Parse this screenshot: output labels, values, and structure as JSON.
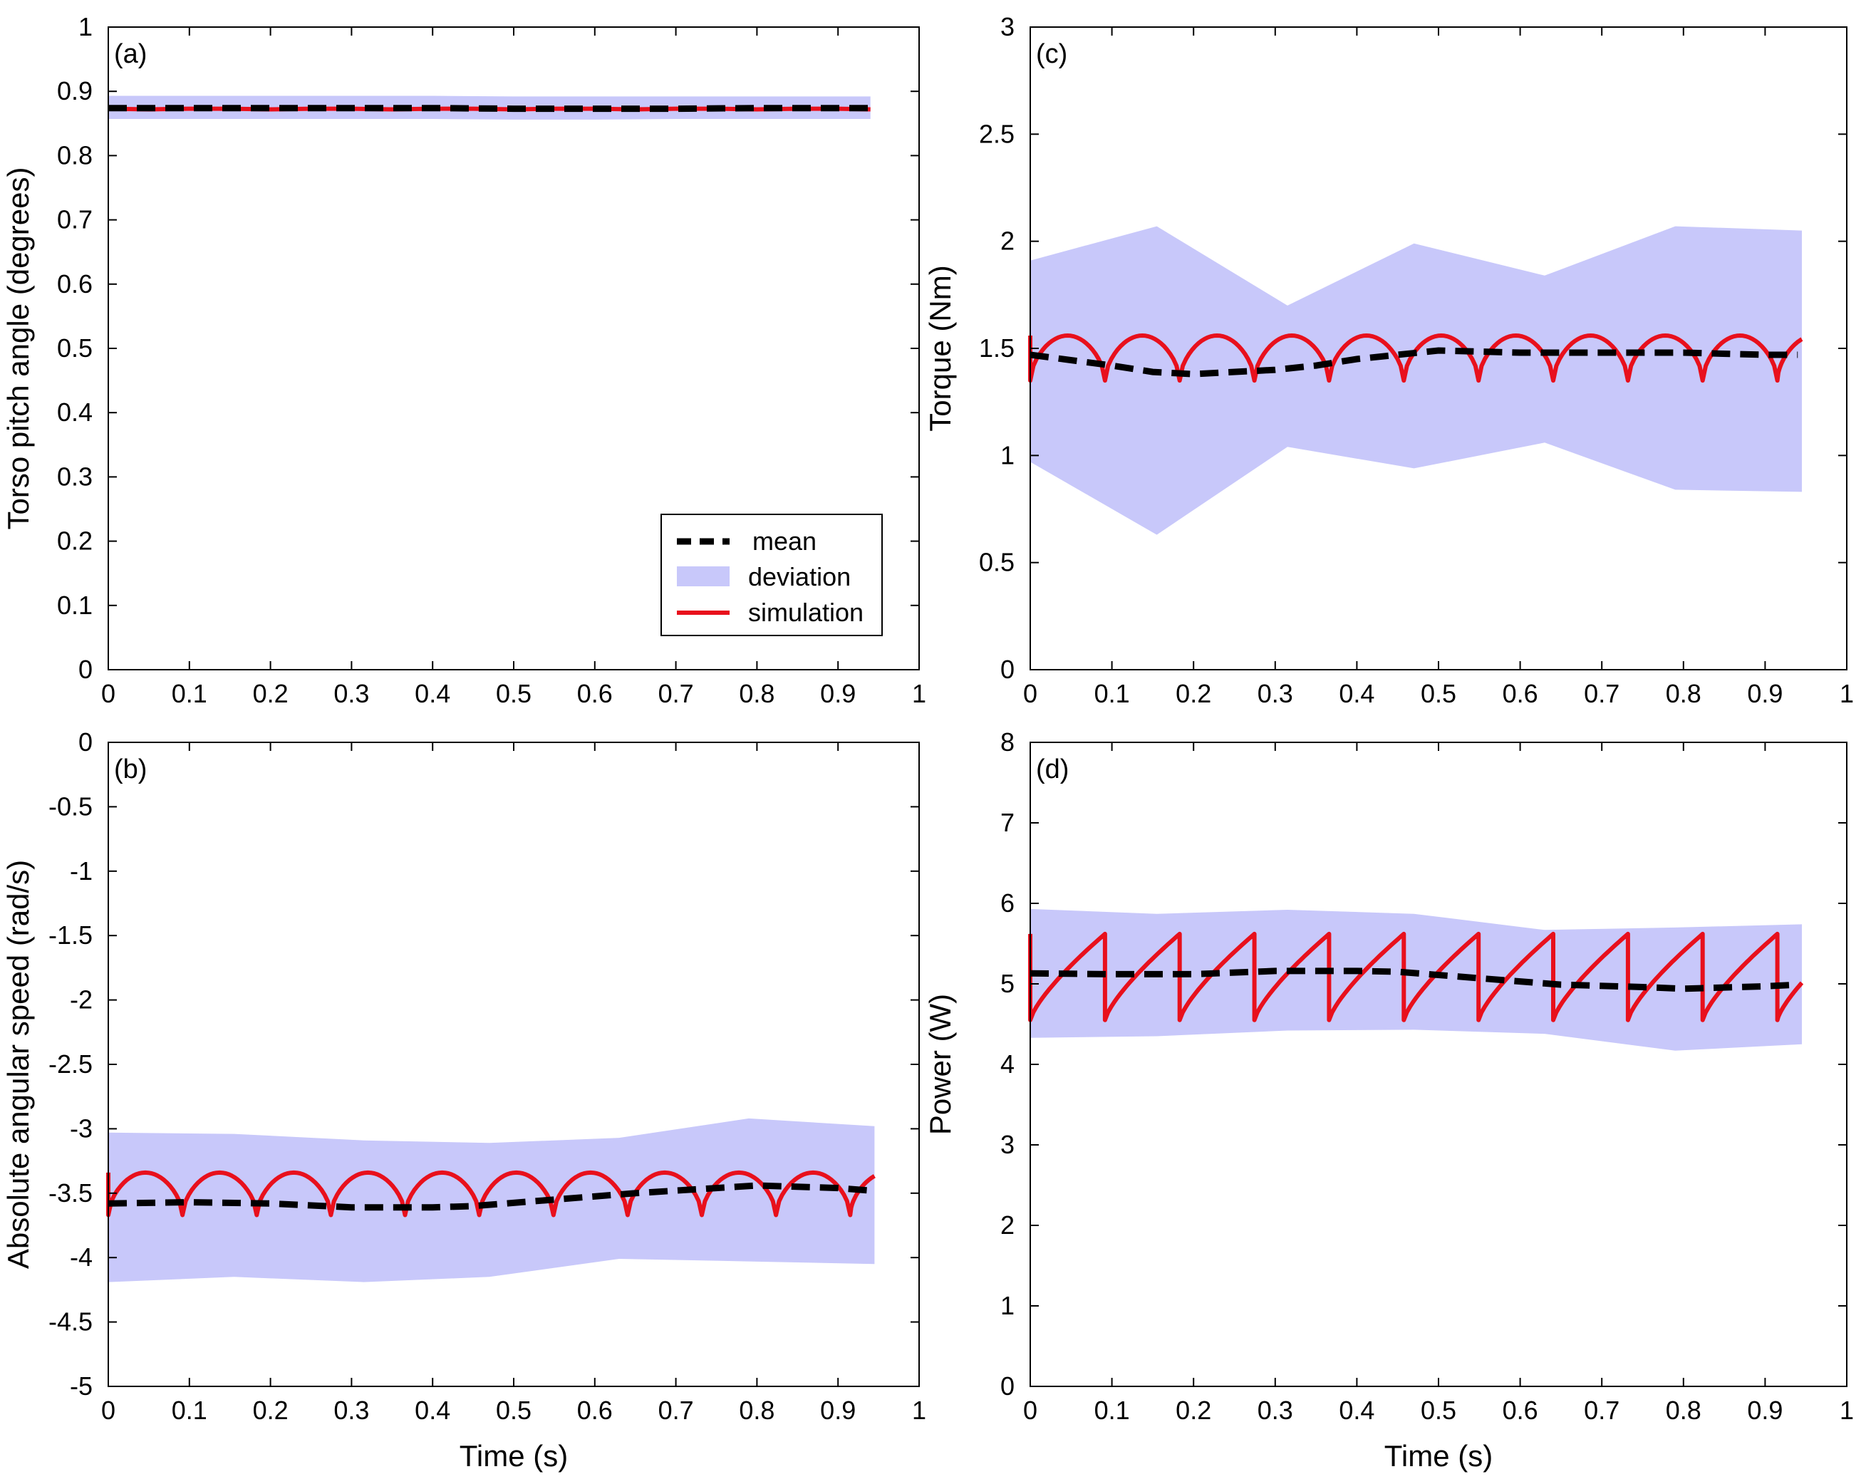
{
  "colors": {
    "band": "#c8c8fa",
    "mean": "#000000",
    "simulation": "#e8101c"
  },
  "legend": {
    "mean": "mean",
    "deviation": "deviation",
    "simulation": "simulation"
  },
  "chart_data": [
    {
      "id": "a",
      "type": "line",
      "tag": "(a)",
      "title": "",
      "xlabel": "",
      "ylabel": "Torso pitch angle (degrees)",
      "xlim": [
        0,
        1
      ],
      "ylim": [
        0,
        1
      ],
      "xticks": [
        0,
        0.1,
        0.2,
        0.3,
        0.4,
        0.5,
        0.6,
        0.7,
        0.8,
        0.9,
        1
      ],
      "xtick_labels": [
        "0",
        "0.1",
        "0.2",
        "0.3",
        "0.4",
        "0.5",
        "0.6",
        "0.7",
        "0.8",
        "0.9",
        "1"
      ],
      "yticks": [
        0,
        0.1,
        0.2,
        0.3,
        0.4,
        0.5,
        0.6,
        0.7,
        0.8,
        0.9,
        1
      ],
      "ytick_labels": [
        "0",
        "0.1",
        "0.2",
        "0.3",
        "0.4",
        "0.5",
        "0.6",
        "0.7",
        "0.8",
        "0.9",
        "1"
      ],
      "legend_position": "bottom-right",
      "deviation": {
        "x": [
          0,
          0.1,
          0.2,
          0.3,
          0.4,
          0.5,
          0.6,
          0.7,
          0.8,
          0.9,
          0.94
        ],
        "upper": [
          0.893,
          0.893,
          0.893,
          0.893,
          0.893,
          0.892,
          0.892,
          0.892,
          0.892,
          0.892,
          0.892
        ],
        "lower": [
          0.857,
          0.857,
          0.857,
          0.857,
          0.857,
          0.856,
          0.856,
          0.857,
          0.857,
          0.857,
          0.857
        ]
      },
      "mean": {
        "x": [
          0,
          0.1,
          0.2,
          0.3,
          0.4,
          0.5,
          0.6,
          0.7,
          0.8,
          0.9,
          0.94
        ],
        "y": [
          0.874,
          0.874,
          0.874,
          0.874,
          0.874,
          0.873,
          0.873,
          0.873,
          0.874,
          0.874,
          0.874
        ]
      },
      "simulation": {
        "x": [
          0,
          0.05,
          0.1,
          0.15,
          0.2,
          0.25,
          0.3,
          0.35,
          0.4,
          0.45,
          0.5,
          0.55,
          0.6,
          0.65,
          0.7,
          0.75,
          0.8,
          0.85,
          0.9,
          0.94
        ],
        "y": [
          0.873,
          0.872,
          0.873,
          0.873,
          0.872,
          0.873,
          0.873,
          0.872,
          0.873,
          0.873,
          0.872,
          0.873,
          0.873,
          0.872,
          0.873,
          0.873,
          0.872,
          0.873,
          0.873,
          0.872
        ]
      }
    },
    {
      "id": "b",
      "type": "line",
      "tag": "(b)",
      "title": "",
      "xlabel": "Time (s)",
      "ylabel": "Absolute angular speed (rad/s)",
      "xlim": [
        0,
        1
      ],
      "ylim": [
        -5,
        0
      ],
      "xticks": [
        0,
        0.1,
        0.2,
        0.3,
        0.4,
        0.5,
        0.6,
        0.7,
        0.8,
        0.9,
        1
      ],
      "xtick_labels": [
        "0",
        "0.1",
        "0.2",
        "0.3",
        "0.4",
        "0.5",
        "0.6",
        "0.7",
        "0.8",
        "0.9",
        "1"
      ],
      "yticks": [
        0,
        -0.5,
        -1,
        -1.5,
        -2,
        -2.5,
        -3,
        -3.5,
        -4,
        -4.5,
        -5
      ],
      "ytick_labels": [
        "0",
        "-0.5",
        "-1",
        "-1.5",
        "-2",
        "-2.5",
        "-3",
        "-3.5",
        "-4",
        "-4.5",
        "-5"
      ],
      "deviation": {
        "x": [
          0,
          0.155,
          0.315,
          0.47,
          0.63,
          0.79,
          0.945
        ],
        "upper": [
          -3.03,
          -3.04,
          -3.09,
          -3.11,
          -3.07,
          -2.92,
          -2.98
        ],
        "lower": [
          -4.19,
          -4.15,
          -4.19,
          -4.15,
          -4.01,
          -4.03,
          -4.05
        ]
      },
      "mean": {
        "x": [
          0,
          0.1,
          0.2,
          0.3,
          0.4,
          0.45,
          0.55,
          0.65,
          0.75,
          0.8,
          0.9,
          0.94
        ],
        "y": [
          -3.58,
          -3.57,
          -3.58,
          -3.61,
          -3.61,
          -3.6,
          -3.55,
          -3.5,
          -3.46,
          -3.44,
          -3.46,
          -3.48
        ]
      },
      "simulation": {
        "period": 0.0915,
        "start": 0,
        "end": 0.945,
        "peak": -3.34,
        "trough": -3.67,
        "shape": "arch"
      }
    },
    {
      "id": "c",
      "type": "line",
      "tag": "(c)",
      "title": "",
      "xlabel": "",
      "ylabel": "Torque (Nm)",
      "xlim": [
        0,
        1
      ],
      "ylim": [
        0,
        3
      ],
      "xticks": [
        0,
        0.1,
        0.2,
        0.3,
        0.4,
        0.5,
        0.6,
        0.7,
        0.8,
        0.9,
        1
      ],
      "xtick_labels": [
        "0",
        "0.1",
        "0.2",
        "0.3",
        "0.4",
        "0.5",
        "0.6",
        "0.7",
        "0.8",
        "0.9",
        "1"
      ],
      "yticks": [
        0,
        0.5,
        1,
        1.5,
        2,
        2.5,
        3
      ],
      "ytick_labels": [
        "0",
        "0.5",
        "1",
        "1.5",
        "2",
        "2.5",
        "3"
      ],
      "deviation": {
        "x": [
          0,
          0.155,
          0.315,
          0.47,
          0.63,
          0.79,
          0.945
        ],
        "upper": [
          1.91,
          2.07,
          1.7,
          1.99,
          1.84,
          2.07,
          2.05
        ],
        "lower": [
          0.97,
          0.63,
          1.04,
          0.94,
          1.06,
          0.84,
          0.83
        ]
      },
      "mean": {
        "x": [
          0,
          0.1,
          0.15,
          0.2,
          0.3,
          0.35,
          0.4,
          0.5,
          0.6,
          0.7,
          0.8,
          0.9,
          0.94
        ],
        "y": [
          1.47,
          1.42,
          1.39,
          1.38,
          1.4,
          1.42,
          1.45,
          1.49,
          1.48,
          1.48,
          1.48,
          1.47,
          1.47
        ]
      },
      "simulation": {
        "period": 0.0915,
        "start": 0,
        "end": 0.945,
        "peak": 1.56,
        "trough": 1.35,
        "shape": "arch"
      }
    },
    {
      "id": "d",
      "type": "line",
      "tag": "(d)",
      "title": "",
      "xlabel": "Time (s)",
      "ylabel": "Power (W)",
      "xlim": [
        0,
        1
      ],
      "ylim": [
        0,
        8
      ],
      "xticks": [
        0,
        0.1,
        0.2,
        0.3,
        0.4,
        0.5,
        0.6,
        0.7,
        0.8,
        0.9,
        1
      ],
      "xtick_labels": [
        "0",
        "0.1",
        "0.2",
        "0.3",
        "0.4",
        "0.5",
        "0.6",
        "0.7",
        "0.8",
        "0.9",
        "1"
      ],
      "yticks": [
        0,
        1,
        2,
        3,
        4,
        5,
        6,
        7,
        8
      ],
      "ytick_labels": [
        "0",
        "1",
        "2",
        "3",
        "4",
        "5",
        "6",
        "7",
        "8"
      ],
      "deviation": {
        "x": [
          0,
          0.155,
          0.315,
          0.47,
          0.63,
          0.79,
          0.945
        ],
        "upper": [
          5.93,
          5.87,
          5.92,
          5.87,
          5.67,
          5.7,
          5.74
        ],
        "lower": [
          4.33,
          4.35,
          4.42,
          4.43,
          4.38,
          4.17,
          4.25
        ]
      },
      "mean": {
        "x": [
          0,
          0.1,
          0.2,
          0.3,
          0.4,
          0.45,
          0.55,
          0.65,
          0.75,
          0.8,
          0.9,
          0.94
        ],
        "y": [
          5.13,
          5.12,
          5.12,
          5.16,
          5.16,
          5.15,
          5.07,
          4.99,
          4.96,
          4.94,
          4.97,
          4.99
        ]
      },
      "simulation": {
        "period": 0.0915,
        "start": 0,
        "end": 0.945,
        "peak": 5.62,
        "trough": 4.55,
        "shape": "ramp"
      }
    }
  ]
}
